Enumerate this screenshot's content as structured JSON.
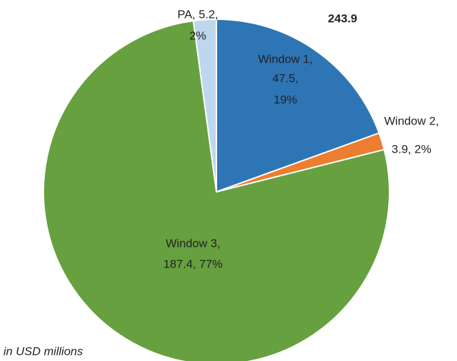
{
  "chart_data": {
    "type": "pie",
    "values": [
      47.5,
      3.9,
      187.4,
      5.2
    ],
    "colors": [
      "#2e75b6",
      "#ed7d31",
      "#66a03f",
      "#bdd7ee"
    ],
    "data_labels": [
      [
        "Window 1,",
        "47.5,",
        "19%"
      ],
      [
        "Window 2,",
        "3.9, 2%"
      ],
      [
        "Window 3,",
        "187.4, 77%"
      ],
      [
        "PA, 5.2,",
        "2%"
      ]
    ],
    "total": 243.9,
    "note": "in USD millions"
  }
}
